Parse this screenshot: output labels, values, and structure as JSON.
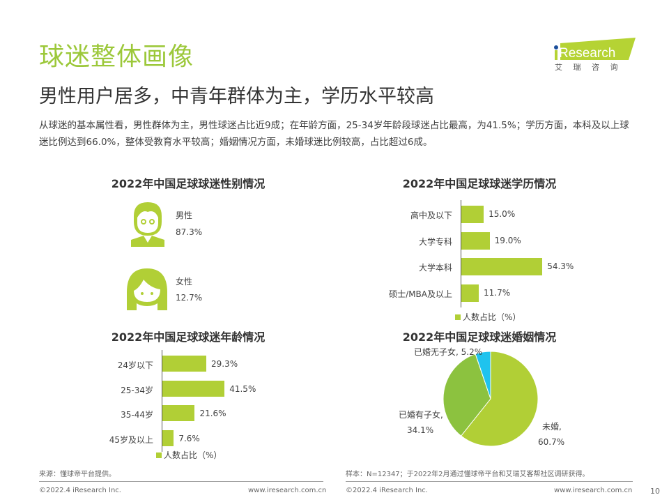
{
  "header": {
    "title": "球迷整体画像",
    "subtitle": "男性用户居多，中青年群体为主，学历水平较高",
    "summary": "从球迷的基本属性看，男性群体为主，男性球迷占比近9成；在年龄方面，25-34岁年龄段球迷占比最高，为41.5%；学历方面，本科及以上球迷比例达到66.0%，整体受教育水平较高；婚姻情况方面，未婚球迷比例较高，占比超过6成。"
  },
  "logo": {
    "text": "iResearch",
    "sub": "艾 瑞 咨 询"
  },
  "gender": {
    "title": "2022年中国足球球迷性别情况",
    "items": [
      {
        "label": "男性",
        "value": "87.3%",
        "icon": "male-avatar-icon"
      },
      {
        "label": "女性",
        "value": "12.7%",
        "icon": "female-avatar-icon"
      }
    ]
  },
  "chart_data": [
    {
      "type": "bar",
      "orientation": "horizontal",
      "title": "2022年中国足球球迷年龄情况",
      "categories": [
        "24岁以下",
        "25-34岁",
        "35-44岁",
        "45岁及以上"
      ],
      "values": [
        29.3,
        41.5,
        21.6,
        7.6
      ],
      "labels": [
        "29.3%",
        "41.5%",
        "21.6%",
        "7.6%"
      ],
      "legend": "人数占比（%）",
      "legend_position": "bottom",
      "color": "#b1cf36"
    },
    {
      "type": "bar",
      "orientation": "horizontal",
      "title": "2022年中国足球球迷学历情况",
      "categories": [
        "高中及以下",
        "大学专科",
        "大学本科",
        "硕士/MBA及以上"
      ],
      "values": [
        15.0,
        19.0,
        54.3,
        11.7
      ],
      "labels": [
        "15.0%",
        "19.0%",
        "54.3%",
        "11.7%"
      ],
      "legend": "人数占比（%）",
      "legend_position": "bottom",
      "color": "#b1cf36"
    },
    {
      "type": "pie",
      "title": "2022年中国足球球迷婚姻情况",
      "categories": [
        "未婚",
        "已婚有子女",
        "已婚无子女"
      ],
      "values": [
        60.7,
        34.1,
        5.2
      ],
      "labels": [
        "未婚,",
        "已婚有子女,",
        "已婚无子女,"
      ],
      "value_labels": [
        "60.7%",
        "34.1%",
        "5.2%"
      ],
      "colors": [
        "#b1cf36",
        "#8cc23f",
        "#1fc3ee"
      ]
    }
  ],
  "footer": {
    "source_left": "来源：懂球帝平台提供。",
    "source_right": "样本：N=12347；于2022年2月通过懂球帝平台和艾瑞艾客帮社区调研获得。",
    "copyright": "©2022.4 iResearch Inc.",
    "url": "www.iresearch.com.cn",
    "page": "10"
  }
}
